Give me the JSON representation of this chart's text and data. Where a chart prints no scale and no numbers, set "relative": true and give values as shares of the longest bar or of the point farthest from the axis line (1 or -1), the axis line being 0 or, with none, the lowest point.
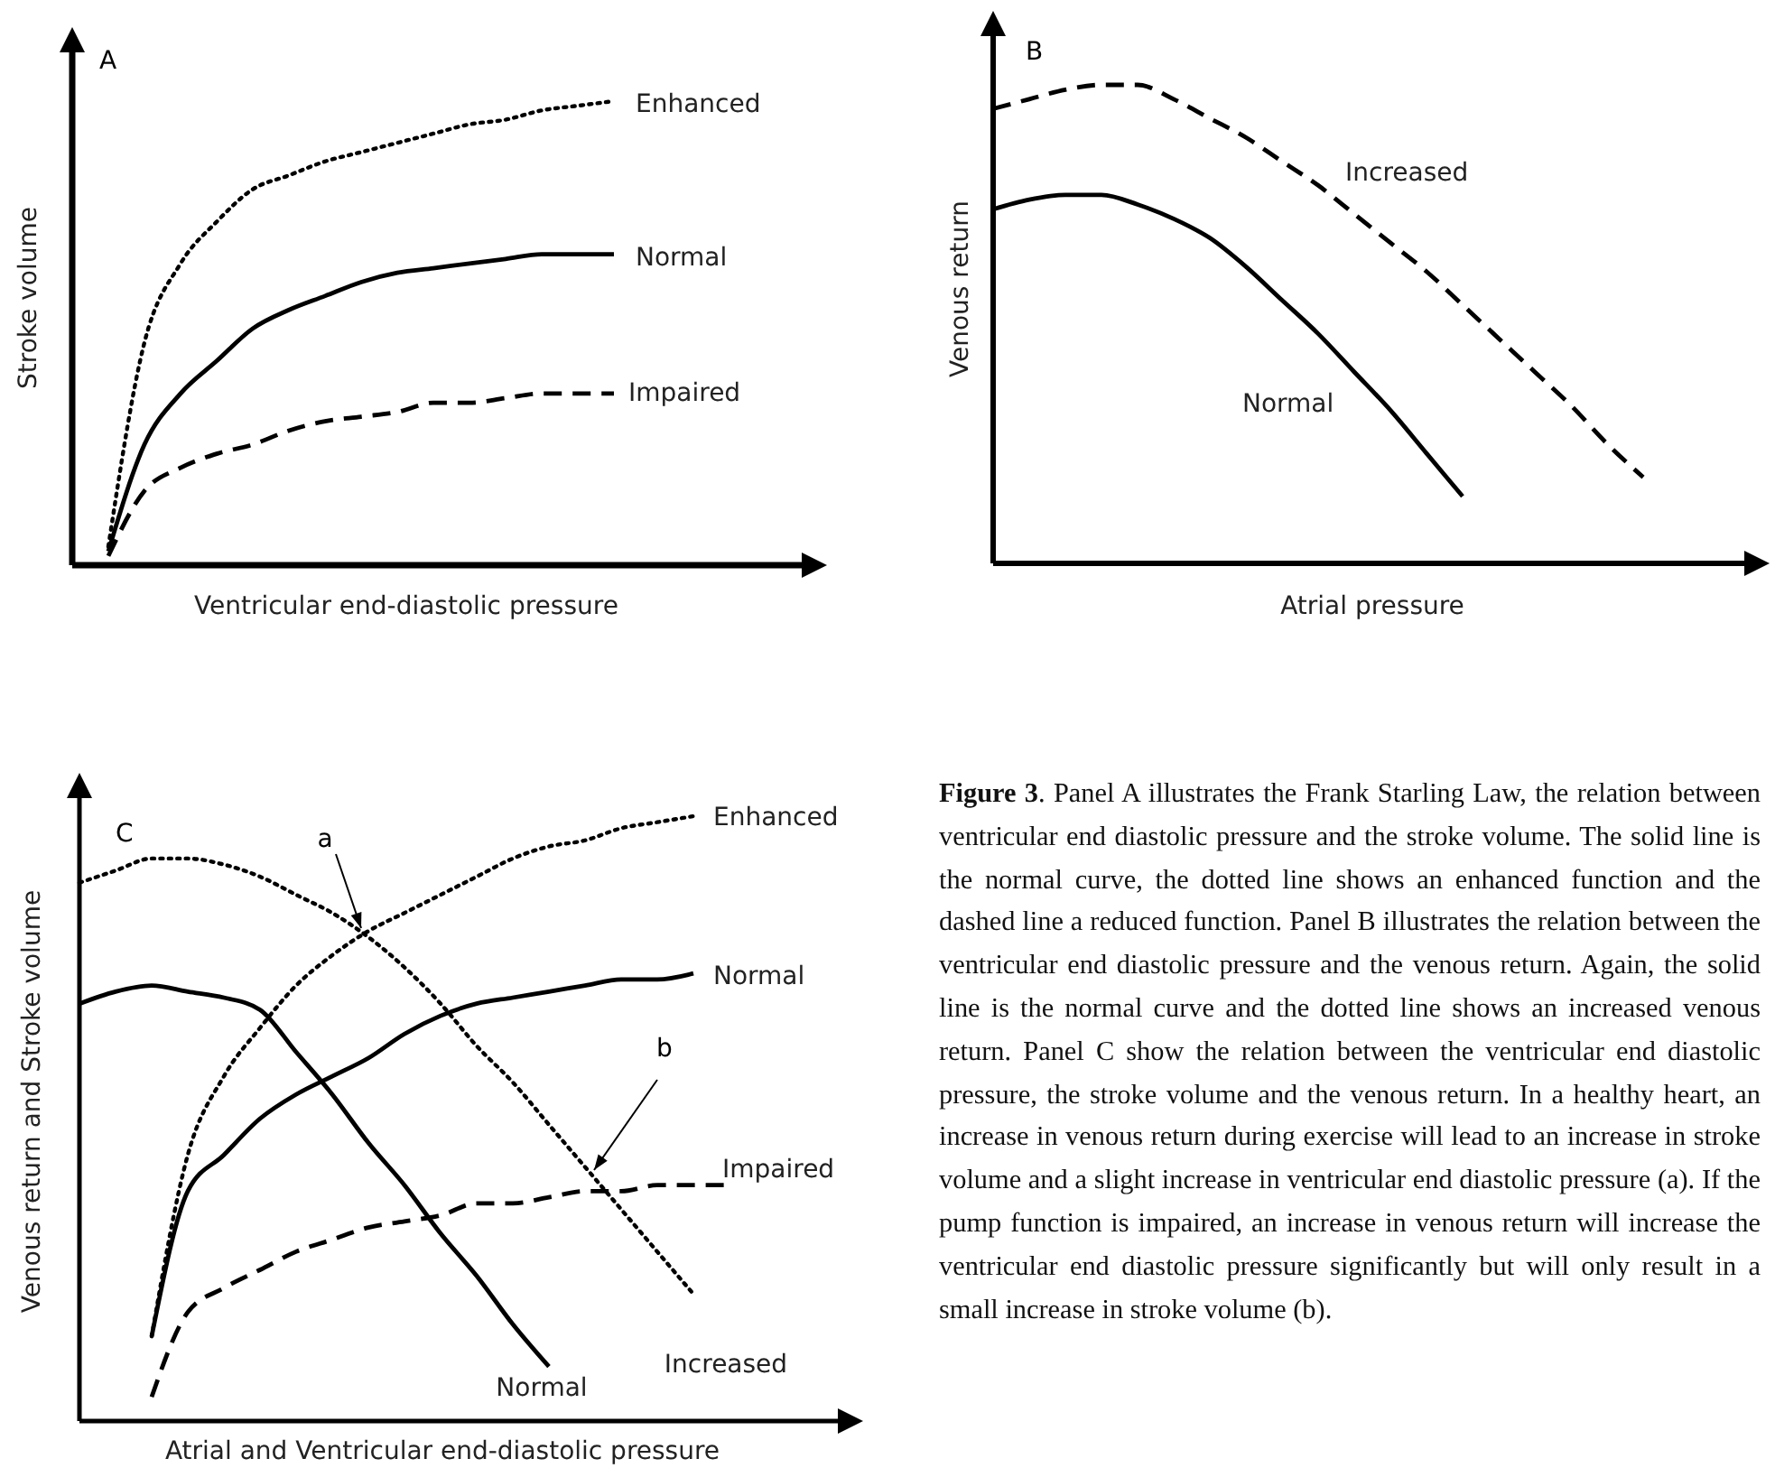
{
  "chart_data": [
    {
      "type": "line",
      "title": "A",
      "xlabel": "Ventricular end-diastolic pressure",
      "ylabel": "Stroke volume",
      "relative": true,
      "categories": [
        null,
        null,
        null,
        null,
        null,
        null,
        null,
        null,
        null,
        null,
        null,
        null,
        null,
        null,
        null,
        null,
        null,
        null,
        null,
        null,
        null
      ],
      "series": [
        {
          "name": "Enhanced",
          "color": "#000000",
          "line_style": "dotted",
          "values": [
            null,
            0.04,
            0.48,
            0.65,
            0.74,
            0.81,
            0.84,
            0.87,
            0.89,
            0.91,
            0.93,
            0.95,
            0.96,
            0.98,
            0.99,
            1.0,
            null,
            null,
            null,
            null,
            null
          ]
        },
        {
          "name": "Normal",
          "color": "#000000",
          "line_style": "solid",
          "values": [
            null,
            0.03,
            0.26,
            0.37,
            0.44,
            0.51,
            0.55,
            0.58,
            0.61,
            0.63,
            0.64,
            0.65,
            0.66,
            0.67,
            0.67,
            0.67,
            null,
            null,
            null,
            null,
            null
          ]
        },
        {
          "name": "Impaired",
          "color": "#000000",
          "line_style": "dashed",
          "values": [
            null,
            0.02,
            0.16,
            0.21,
            0.24,
            0.26,
            0.29,
            0.31,
            0.32,
            0.33,
            0.35,
            0.35,
            0.36,
            0.37,
            0.37,
            0.37,
            null,
            null,
            null,
            null,
            null
          ]
        }
      ]
    },
    {
      "type": "line",
      "title": "B",
      "xlabel": "Atrial pressure",
      "ylabel": "Venous return",
      "relative": true,
      "categories": [
        null,
        null,
        null,
        null,
        null,
        null,
        null,
        null,
        null,
        null,
        null,
        null,
        null,
        null,
        null,
        null,
        null,
        null,
        null,
        null,
        null,
        null
      ],
      "series": [
        {
          "name": "Increased",
          "color": "#000000",
          "line_style": "dashed",
          "values": [
            0.95,
            0.97,
            0.99,
            1.0,
            1.0,
            0.97,
            0.93,
            0.89,
            0.84,
            0.79,
            0.73,
            0.67,
            0.61,
            0.54,
            0.47,
            0.4,
            0.33,
            0.25,
            0.18,
            null,
            null,
            null
          ]
        },
        {
          "name": "Normal",
          "color": "#000000",
          "line_style": "solid",
          "values": [
            0.74,
            0.76,
            0.77,
            0.77,
            0.75,
            0.72,
            0.68,
            0.62,
            0.55,
            0.48,
            0.4,
            0.32,
            0.23,
            0.14,
            null,
            null,
            null,
            null,
            null,
            null,
            null,
            null
          ]
        }
      ]
    },
    {
      "type": "line",
      "title": "C",
      "xlabel": "Atrial and Ventricular end-diastolic pressure",
      "ylabel": "Venous return and Stroke volume",
      "relative": true,
      "categories": [
        null,
        null,
        null,
        null,
        null,
        null,
        null,
        null,
        null,
        null,
        null,
        null,
        null,
        null,
        null,
        null,
        null,
        null,
        null,
        null,
        null,
        null
      ],
      "annotations": [
        "a",
        "b"
      ],
      "series": [
        {
          "name": "Enhanced",
          "color": "#000000",
          "line_style": "dotted",
          "values": [
            null,
            null,
            0.14,
            0.44,
            0.57,
            0.65,
            0.72,
            0.77,
            0.81,
            0.84,
            0.87,
            0.9,
            0.93,
            0.95,
            0.96,
            0.98,
            0.99,
            1.0,
            null,
            null,
            null,
            null
          ]
        },
        {
          "name": "Normal",
          "color": "#000000",
          "line_style": "solid",
          "values": [
            null,
            null,
            0.14,
            0.38,
            0.44,
            0.5,
            0.54,
            0.57,
            0.6,
            0.64,
            0.67,
            0.69,
            0.7,
            0.71,
            0.72,
            0.73,
            0.73,
            0.74,
            null,
            null,
            null,
            null
          ]
        },
        {
          "name": "Impaired",
          "color": "#000000",
          "line_style": "dashed",
          "values": [
            null,
            null,
            0.04,
            0.18,
            0.22,
            0.25,
            0.28,
            0.3,
            0.32,
            0.33,
            0.34,
            0.36,
            0.36,
            0.37,
            0.38,
            0.38,
            0.39,
            0.39,
            0.39,
            null,
            null,
            null
          ]
        },
        {
          "name": "Normal",
          "color": "#000000",
          "line_style": "solid",
          "values": [
            0.69,
            0.71,
            0.72,
            0.71,
            0.7,
            0.68,
            0.61,
            0.54,
            0.46,
            0.39,
            0.31,
            0.24,
            0.16,
            0.09,
            null,
            null,
            null,
            null,
            null,
            null,
            null,
            null
          ]
        },
        {
          "name": "Increased",
          "color": "#000000",
          "line_style": "dotted",
          "values": [
            0.89,
            0.91,
            0.93,
            0.93,
            0.92,
            0.9,
            0.87,
            0.84,
            0.8,
            0.75,
            0.69,
            0.62,
            0.56,
            0.49,
            0.42,
            0.35,
            0.28,
            0.21,
            null,
            null,
            null,
            null
          ]
        }
      ]
    },
    {
      "type": "other",
      "title": "Figure 3",
      "annotations": [
        ". Panel A illustrates the Frank Starling Law, the relation between ventricular end diastolic pressure and the stroke volume. The solid line is the normal curve, the dotted line shows an enhanced function and the dashed line a reduced function. Panel B illustrates the relation between the ventricular end diastolic pressure and the venous return. Again, the solid line is the normal curve and the dotted line shows an increased venous return. Panel C show the relation between the ventricular end diastolic pressure, the stroke volume and the venous return. In a healthy heart, an increase in venous return during exercise will lead to an increase in stroke volume and a slight increase in ventricular end diastolic pressure (a). If the pump function is impaired, an increase in venous return will increase the ventricular end diastolic pressure significantly but will only result in a small increase in stroke volume (b)."
      ]
    }
  ]
}
